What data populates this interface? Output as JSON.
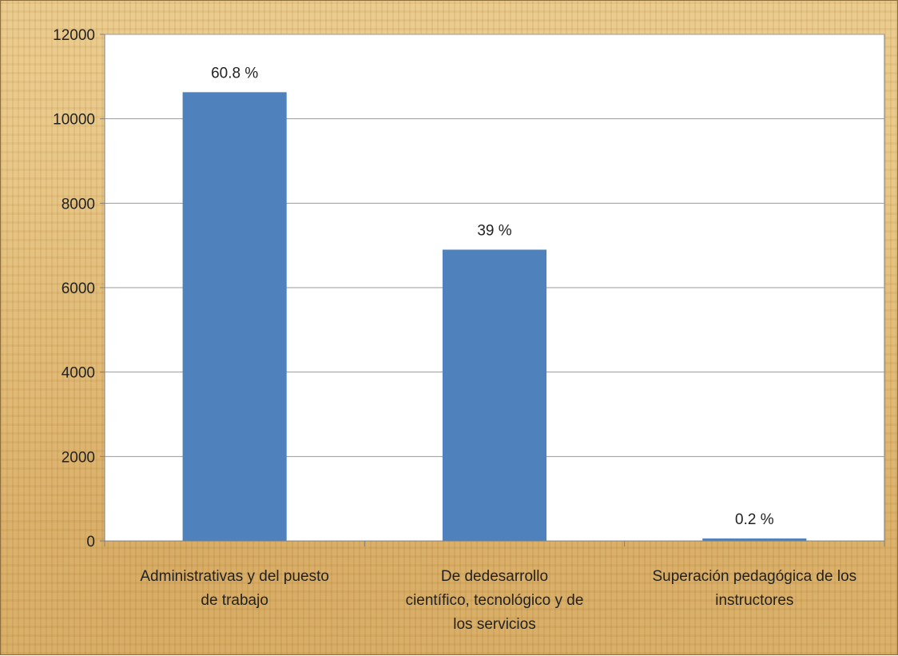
{
  "chart_data": {
    "type": "bar",
    "categories": [
      [
        "Administrativas y del puesto",
        "de trabajo"
      ],
      [
        "De dedesarrollo",
        "científico, tecnológico y de",
        "los servicios"
      ],
      [
        "Superación pedagógica de los",
        "instructores"
      ]
    ],
    "values": [
      10630,
      6900,
      60
    ],
    "data_labels": [
      "60.8 %",
      "39 %",
      "0.2 %"
    ],
    "ylim": [
      0,
      12000
    ],
    "yticks": [
      0,
      2000,
      4000,
      6000,
      8000,
      10000,
      12000
    ],
    "grid": true,
    "title": "",
    "xlabel": "",
    "ylabel": "",
    "colors": {
      "bar": "#4f81bd",
      "plot_bg": "#ffffff",
      "grid": "#9a9a9a",
      "axis": "#7f7f7f"
    }
  }
}
